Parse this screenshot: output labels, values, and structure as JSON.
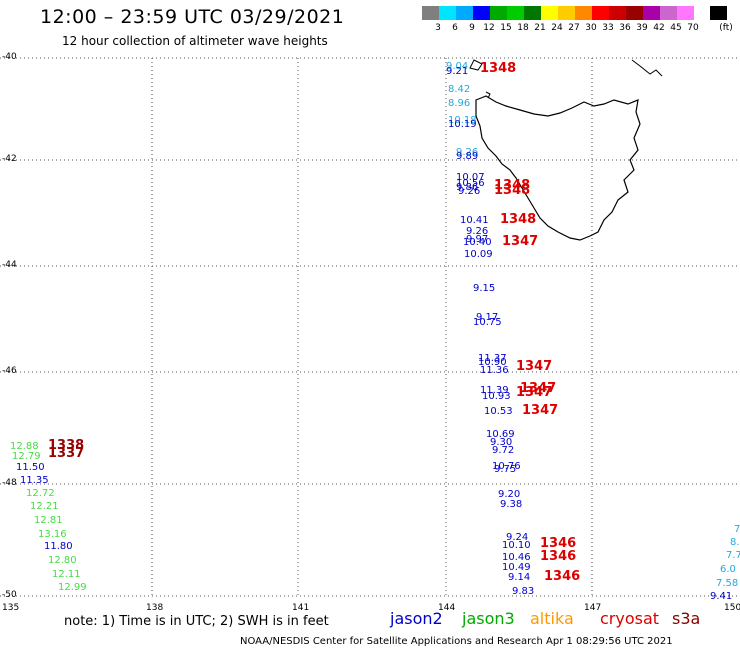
{
  "title": "12:00 – 23:59 UTC 03/29/2021",
  "subtitle": "12 hour collection of altimeter wave heights",
  "color_scale": {
    "colors": [
      "#7f7f7f",
      "#00e5ff",
      "#00aaff",
      "#0000ff",
      "#00aa00",
      "#00cc00",
      "#007700",
      "#ffff00",
      "#ffcc00",
      "#ff8800",
      "#ff0000",
      "#cc0000",
      "#990000",
      "#aa00aa",
      "#cc66cc",
      "#ff77ff",
      "#000000"
    ],
    "labels": [
      "3",
      "6",
      "9",
      "12",
      "15",
      "18",
      "21",
      "24",
      "27",
      "30",
      "33",
      "36",
      "39",
      "42",
      "45",
      "70",
      "(ft)"
    ]
  },
  "lat_labels": [
    "-40",
    "-42",
    "-44",
    "-46",
    "-48",
    "-50"
  ],
  "lon_labels": [
    "135",
    "138",
    "141",
    "144",
    "147",
    "150"
  ],
  "satellite_colors": {
    "jason2": "#0000cc",
    "jason3": "#00aa00",
    "altika": "#ff9900",
    "cryosat": "#dd0000",
    "s3a": "#880000",
    "light_green": "#44dd44",
    "light_blue": "#22aadd",
    "dark_red": "#990000"
  },
  "observations": [
    {
      "text": "9.04",
      "color": "light_blue"
    },
    {
      "text": "9.21",
      "color": "jason2"
    },
    {
      "text": "8.42",
      "color": "light_blue"
    },
    {
      "text": "8.96",
      "color": "light_blue"
    },
    {
      "text": "10.18",
      "color": "light_blue"
    },
    {
      "text": "10.19",
      "color": "jason2"
    },
    {
      "text": "9.26",
      "color": "light_blue"
    },
    {
      "text": "9.89",
      "color": "jason2"
    },
    {
      "text": "10.07",
      "color": "jason2"
    },
    {
      "text": "10.56",
      "color": "jason2"
    },
    {
      "text": "9.86",
      "color": "jason2"
    },
    {
      "text": "9.26",
      "color": "jason2"
    },
    {
      "text": "10.41",
      "color": "jason2"
    },
    {
      "text": "9.26",
      "color": "jason2"
    },
    {
      "text": "9.97",
      "color": "jason2"
    },
    {
      "text": "10.40",
      "color": "jason2"
    },
    {
      "text": "10.09",
      "color": "jason2"
    },
    {
      "text": "9.15",
      "color": "jason2"
    },
    {
      "text": "9.17",
      "color": "jason2"
    },
    {
      "text": "10.75",
      "color": "jason2"
    },
    {
      "text": "11.37",
      "color": "jason2"
    },
    {
      "text": "10.90",
      "color": "jason2"
    },
    {
      "text": "11.36",
      "color": "jason2"
    },
    {
      "text": "11.39",
      "color": "jason2"
    },
    {
      "text": "10.93",
      "color": "jason2"
    },
    {
      "text": "10.53",
      "color": "jason2"
    },
    {
      "text": "10.69",
      "color": "jason2"
    },
    {
      "text": "9.30",
      "color": "jason2"
    },
    {
      "text": "9.72",
      "color": "jason2"
    },
    {
      "text": "10.76",
      "color": "jason2"
    },
    {
      "text": "9.75",
      "color": "jason2"
    },
    {
      "text": "9.20",
      "color": "jason2"
    },
    {
      "text": "9.38",
      "color": "jason2"
    },
    {
      "text": "9.24",
      "color": "jason2"
    },
    {
      "text": "10.10",
      "color": "jason2"
    },
    {
      "text": "10.46",
      "color": "jason2"
    },
    {
      "text": "10.49",
      "color": "jason2"
    },
    {
      "text": "9.14",
      "color": "jason2"
    },
    {
      "text": "9.83",
      "color": "jason2"
    },
    {
      "text": "12.88",
      "color": "light_green"
    },
    {
      "text": "12.79",
      "color": "light_green"
    },
    {
      "text": "11.50",
      "color": "jason2"
    },
    {
      "text": "11.35",
      "color": "jason2"
    },
    {
      "text": "12.72",
      "color": "light_green"
    },
    {
      "text": "12.21",
      "color": "light_green"
    },
    {
      "text": "12.81",
      "color": "light_green"
    },
    {
      "text": "13.16",
      "color": "light_green"
    },
    {
      "text": "11.80",
      "color": "jason2"
    },
    {
      "text": "12.80",
      "color": "light_green"
    },
    {
      "text": "12.11",
      "color": "light_green"
    },
    {
      "text": "12.99",
      "color": "light_green"
    },
    {
      "text": "7",
      "color": "light_blue"
    },
    {
      "text": "8.",
      "color": "light_blue"
    },
    {
      "text": "7.7",
      "color": "light_blue"
    },
    {
      "text": "6.0",
      "color": "light_blue"
    },
    {
      "text": "7.58",
      "color": "light_blue"
    },
    {
      "text": "9.41",
      "color": "jason2"
    }
  ],
  "time_marks": [
    {
      "text": "1348",
      "color": "cryosat"
    },
    {
      "text": "1348",
      "color": "cryosat"
    },
    {
      "text": "1348",
      "color": "cryosat"
    },
    {
      "text": "1348",
      "color": "cryosat"
    },
    {
      "text": "1347",
      "color": "cryosat"
    },
    {
      "text": "1347",
      "color": "cryosat"
    },
    {
      "text": "1347",
      "color": "cryosat"
    },
    {
      "text": "1347",
      "color": "cryosat"
    },
    {
      "text": "1347",
      "color": "cryosat"
    },
    {
      "text": "1346",
      "color": "cryosat"
    },
    {
      "text": "1346",
      "color": "cryosat"
    },
    {
      "text": "1346",
      "color": "cryosat"
    },
    {
      "text": "1338",
      "color": "dark_red"
    },
    {
      "text": "1337",
      "color": "dark_red"
    }
  ],
  "note": "note:  1) Time is in UTC; 2) SWH is in feet",
  "legend": [
    {
      "text": "jason2",
      "color": "jason2"
    },
    {
      "text": "jason3",
      "color": "jason3"
    },
    {
      "text": "altika",
      "color": "altika"
    },
    {
      "text": "cryosat",
      "color": "cryosat"
    },
    {
      "text": "s3a",
      "color": "s3a"
    }
  ],
  "credit": "NOAA/NESDIS Center for Satellite Applications and Research   Apr  1 08:29:56 UTC 2021"
}
